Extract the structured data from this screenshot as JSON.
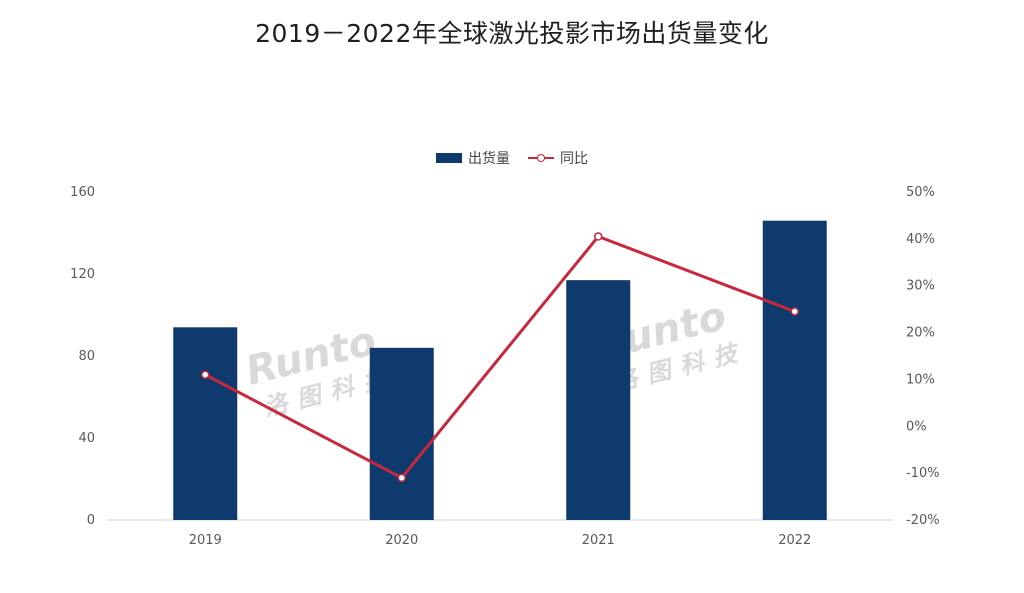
{
  "chart_data": {
    "type": "bar",
    "title": "2019－2022年全球激光投影市场出货量变化",
    "categories": [
      "2019",
      "2020",
      "2021",
      "2022"
    ],
    "series": [
      {
        "name": "出货量",
        "type": "bar",
        "axis": "left",
        "values": [
          94,
          84,
          117,
          146
        ],
        "color": "#0e3a6e"
      },
      {
        "name": "同比",
        "type": "line",
        "axis": "right",
        "values": [
          11,
          -11,
          40.5,
          24.5
        ],
        "color": "#c8283c"
      }
    ],
    "y_left": {
      "ylim": [
        0,
        160
      ],
      "ticks": [
        "0",
        "40",
        "80",
        "120",
        "160"
      ]
    },
    "y_right": {
      "ylim": [
        -20,
        50
      ],
      "ticks": [
        "-20%",
        "-10%",
        "0%",
        "10%",
        "20%",
        "30%",
        "40%",
        "50%"
      ]
    },
    "legend": {
      "position": "top-center",
      "items": [
        "出货量",
        "同比"
      ]
    },
    "grid": false
  },
  "watermark": {
    "brand": "Runto",
    "chinese": "洛图科技"
  }
}
